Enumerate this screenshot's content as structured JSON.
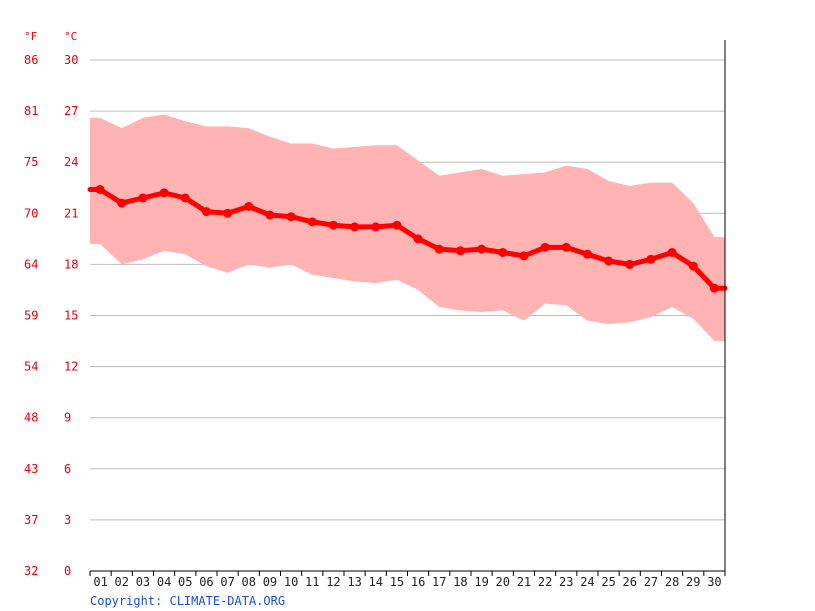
{
  "chart_data": {
    "type": "line",
    "unit_f": "°F",
    "unit_c": "°C",
    "y_ticks_c": [
      "30",
      "27",
      "24",
      "21",
      "18",
      "15",
      "12",
      "9",
      "6",
      "3",
      "0"
    ],
    "y_ticks_f": [
      "86",
      "81",
      "75",
      "70",
      "64",
      "59",
      "54",
      "48",
      "43",
      "37",
      "32"
    ],
    "ylim": [
      0,
      30
    ],
    "grid": true,
    "categories": [
      "01",
      "02",
      "03",
      "04",
      "05",
      "06",
      "07",
      "08",
      "09",
      "10",
      "11",
      "12",
      "13",
      "14",
      "15",
      "16",
      "17",
      "18",
      "19",
      "20",
      "21",
      "22",
      "23",
      "24",
      "25",
      "26",
      "27",
      "28",
      "29",
      "30"
    ],
    "series": [
      {
        "kind": "mean",
        "color": "#ff0000",
        "values": [
          22.4,
          21.6,
          21.9,
          22.2,
          21.9,
          21.1,
          21.0,
          21.4,
          20.9,
          20.8,
          20.5,
          20.3,
          20.2,
          20.2,
          20.3,
          19.5,
          18.9,
          18.8,
          18.9,
          18.7,
          18.5,
          19.0,
          19.0,
          18.6,
          18.2,
          18.0,
          18.3,
          18.7,
          17.9,
          16.6
        ]
      },
      {
        "kind": "max",
        "color": "#ffb3b3",
        "values": [
          26.6,
          26.0,
          26.6,
          26.8,
          26.4,
          26.1,
          26.1,
          26.0,
          25.5,
          25.1,
          25.1,
          24.8,
          24.9,
          25.0,
          25.0,
          24.1,
          23.2,
          23.4,
          23.6,
          23.2,
          23.3,
          23.4,
          23.8,
          23.6,
          22.9,
          22.6,
          22.8,
          22.8,
          21.6,
          19.6
        ]
      },
      {
        "kind": "min",
        "color": "#ffb3b3",
        "values": [
          19.2,
          18.0,
          18.3,
          18.8,
          18.6,
          17.9,
          17.5,
          18.0,
          17.8,
          18.0,
          17.4,
          17.2,
          17.0,
          16.9,
          17.1,
          16.5,
          15.5,
          15.3,
          15.2,
          15.3,
          14.7,
          15.7,
          15.6,
          14.7,
          14.5,
          14.6,
          14.9,
          15.5,
          14.8,
          13.5
        ]
      }
    ]
  },
  "footer": {
    "copyright": "Copyright: CLIMATE-DATA.ORG"
  }
}
